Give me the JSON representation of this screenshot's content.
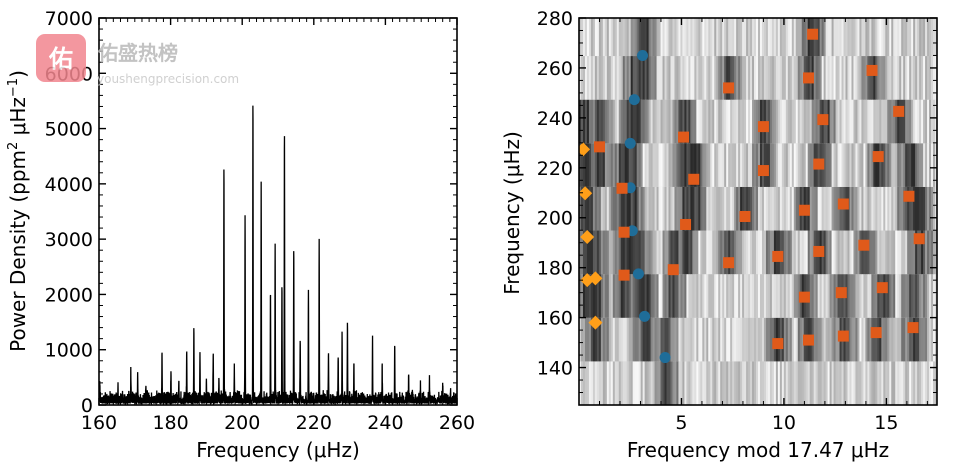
{
  "chart_data": [
    {
      "id": "left",
      "type": "line",
      "title": "",
      "xlabel": "Frequency (μHz)",
      "ylabel_parts": [
        "Power Density (ppm",
        "2",
        " μHz",
        "−1",
        ")"
      ],
      "xlim": [
        160,
        260
      ],
      "ylim": [
        0,
        7000
      ],
      "xticks": [
        160,
        180,
        200,
        220,
        240,
        260
      ],
      "yticks": [
        0,
        1000,
        2000,
        3000,
        4000,
        5000,
        6000,
        7000
      ],
      "grid": false,
      "series": [
        {
          "name": "power spectrum",
          "color": "#000000",
          "peaks": [
            [
              160.2,
              380
            ],
            [
              165.3,
              300
            ],
            [
              168.9,
              450
            ],
            [
              170.8,
              480
            ],
            [
              173.1,
              320
            ],
            [
              177.6,
              870
            ],
            [
              180.1,
              500
            ],
            [
              182.3,
              360
            ],
            [
              184.5,
              950
            ],
            [
              186.5,
              1290
            ],
            [
              188.2,
              860
            ],
            [
              190.0,
              420
            ],
            [
              191.9,
              840
            ],
            [
              193.5,
              420
            ],
            [
              194.9,
              4320
            ],
            [
              197.8,
              570
            ],
            [
              200.8,
              3300
            ],
            [
              203.0,
              5500
            ],
            [
              205.3,
              3840
            ],
            [
              207.9,
              1960
            ],
            [
              209.2,
              2820
            ],
            [
              211.1,
              2000
            ],
            [
              211.8,
              4800
            ],
            [
              214.4,
              2700
            ],
            [
              216.2,
              1150
            ],
            [
              218.5,
              2020
            ],
            [
              221.5,
              2920
            ],
            [
              224.1,
              920
            ],
            [
              226.8,
              820
            ],
            [
              227.9,
              1170
            ],
            [
              229.4,
              1460
            ],
            [
              231.2,
              700
            ],
            [
              236.4,
              1080
            ],
            [
              239.1,
              530
            ],
            [
              242.6,
              1000
            ],
            [
              246.5,
              420
            ],
            [
              249.8,
              250
            ],
            [
              252.3,
              300
            ],
            [
              256.0,
              260
            ],
            [
              258.2,
              220
            ]
          ]
        }
      ]
    },
    {
      "id": "right",
      "type": "scatter",
      "title": "",
      "xlabel": "Frequency mod 17.47 μHz",
      "ylabel": "Frequency (μHz)",
      "xlim": [
        0,
        17.47
      ],
      "ylim": [
        125,
        280
      ],
      "xticks": [
        5,
        10,
        15
      ],
      "yticks": [
        140,
        160,
        180,
        200,
        220,
        240,
        260,
        280
      ],
      "background": "grayscale echelle diagram",
      "grid": false,
      "series": [
        {
          "name": "blue circles",
          "color": "#1f6d99",
          "marker": "circle",
          "points": [
            [
              4.2,
              144.0
            ],
            [
              3.2,
              160.5
            ],
            [
              2.9,
              177.5
            ],
            [
              2.6,
              194.8
            ],
            [
              2.5,
              212.0
            ],
            [
              2.5,
              229.8
            ],
            [
              2.7,
              247.3
            ],
            [
              3.1,
              265.0
            ]
          ]
        },
        {
          "name": "orange squares",
          "color": "#e05a1a",
          "marker": "square",
          "points": [
            [
              2.2,
              177.0
            ],
            [
              2.2,
              194.2
            ],
            [
              2.1,
              211.8
            ],
            [
              1.0,
              228.4
            ],
            [
              4.6,
              179.2
            ],
            [
              5.2,
              197.3
            ],
            [
              5.6,
              215.4
            ],
            [
              5.1,
              232.3
            ],
            [
              9.7,
              149.6
            ],
            [
              9.7,
              184.5
            ],
            [
              8.1,
              200.5
            ],
            [
              9.0,
              218.9
            ],
            [
              9.0,
              236.5
            ],
            [
              7.3,
              182.0
            ],
            [
              7.3,
              252.0
            ],
            [
              11.0,
              168.2
            ],
            [
              11.2,
              151.0
            ],
            [
              11.7,
              186.5
            ],
            [
              11.0,
              203.0
            ],
            [
              11.7,
              221.5
            ],
            [
              11.9,
              239.3
            ],
            [
              11.2,
              256.0
            ],
            [
              11.4,
              273.5
            ],
            [
              12.8,
              170.0
            ],
            [
              12.9,
              152.6
            ],
            [
              13.9,
              189.0
            ],
            [
              12.9,
              205.5
            ],
            [
              14.5,
              154.0
            ],
            [
              14.8,
              172.0
            ],
            [
              14.6,
              224.5
            ],
            [
              14.3,
              259.0
            ],
            [
              16.3,
              156.0
            ],
            [
              16.6,
              191.6
            ],
            [
              16.1,
              208.6
            ],
            [
              15.6,
              242.6
            ]
          ]
        },
        {
          "name": "light orange diamonds",
          "color": "#ff9f19",
          "marker": "diamond",
          "points": [
            [
              0.8,
              158.0
            ],
            [
              0.8,
              175.7
            ],
            [
              0.4,
              175.0
            ],
            [
              0.4,
              192.3
            ],
            [
              0.3,
              209.8
            ],
            [
              0.2,
              227.4
            ]
          ]
        }
      ]
    }
  ],
  "watermark": {
    "logo_glyph": "佑",
    "brand": "佑盛热榜",
    "url": "youshengprecision.com",
    "logo_color": "#f2868f"
  }
}
